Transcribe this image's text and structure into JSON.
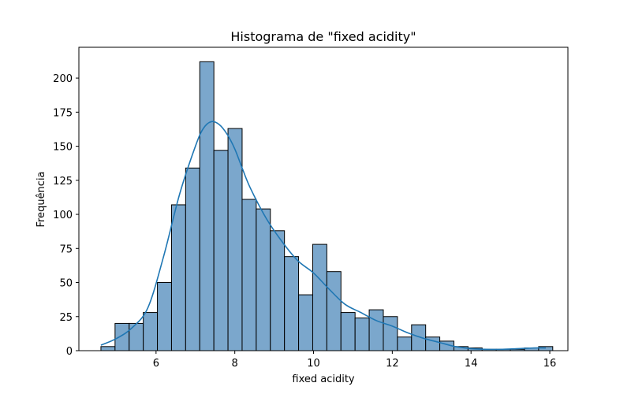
{
  "chart_data": {
    "type": "bar",
    "subtype": "histogram",
    "title": "Histograma de \"fixed acidity\"",
    "xlabel": "fixed acidity",
    "ylabel": "Frequência",
    "xlim": [
      4.04,
      16.46
    ],
    "ylim": [
      0,
      222.6
    ],
    "xticks": [
      6,
      8,
      10,
      12,
      14,
      16
    ],
    "xtick_labels": [
      "6",
      "8",
      "10",
      "12",
      "14",
      "16"
    ],
    "yticks": [
      0,
      25,
      50,
      75,
      100,
      125,
      150,
      175,
      200
    ],
    "ytick_labels": [
      "0",
      "25",
      "50",
      "75",
      "100",
      "125",
      "150",
      "175",
      "200"
    ],
    "grid": false,
    "bar_color": "#7ba7cc",
    "edge_color": "#000000",
    "kde_color": "#1f77b4",
    "bins": {
      "start": 4.6,
      "width": 0.3586,
      "counts": [
        3,
        20,
        20,
        28,
        50,
        107,
        134,
        212,
        147,
        163,
        111,
        104,
        88,
        69,
        41,
        78,
        58,
        28,
        24,
        30,
        25,
        10,
        19,
        10,
        7,
        3,
        2,
        1,
        1,
        1,
        2,
        3
      ]
    },
    "kde": {
      "x": [
        4.6,
        5.0,
        5.4,
        5.8,
        6.2,
        6.6,
        7.0,
        7.2,
        7.4,
        7.6,
        7.8,
        8.0,
        8.2,
        8.4,
        8.8,
        9.2,
        9.6,
        10.0,
        10.4,
        10.8,
        11.2,
        11.6,
        12.0,
        12.4,
        12.8,
        13.2,
        13.6,
        14.0,
        14.4,
        14.8,
        15.2,
        15.6,
        15.9
      ],
      "y": [
        4,
        9,
        17,
        32,
        70,
        115,
        150,
        163,
        168,
        166,
        159,
        148,
        133,
        119,
        97,
        80,
        66,
        57,
        45,
        34,
        28,
        22,
        18,
        13,
        9,
        6,
        3,
        1.5,
        1,
        1,
        1.5,
        2,
        2
      ]
    }
  }
}
